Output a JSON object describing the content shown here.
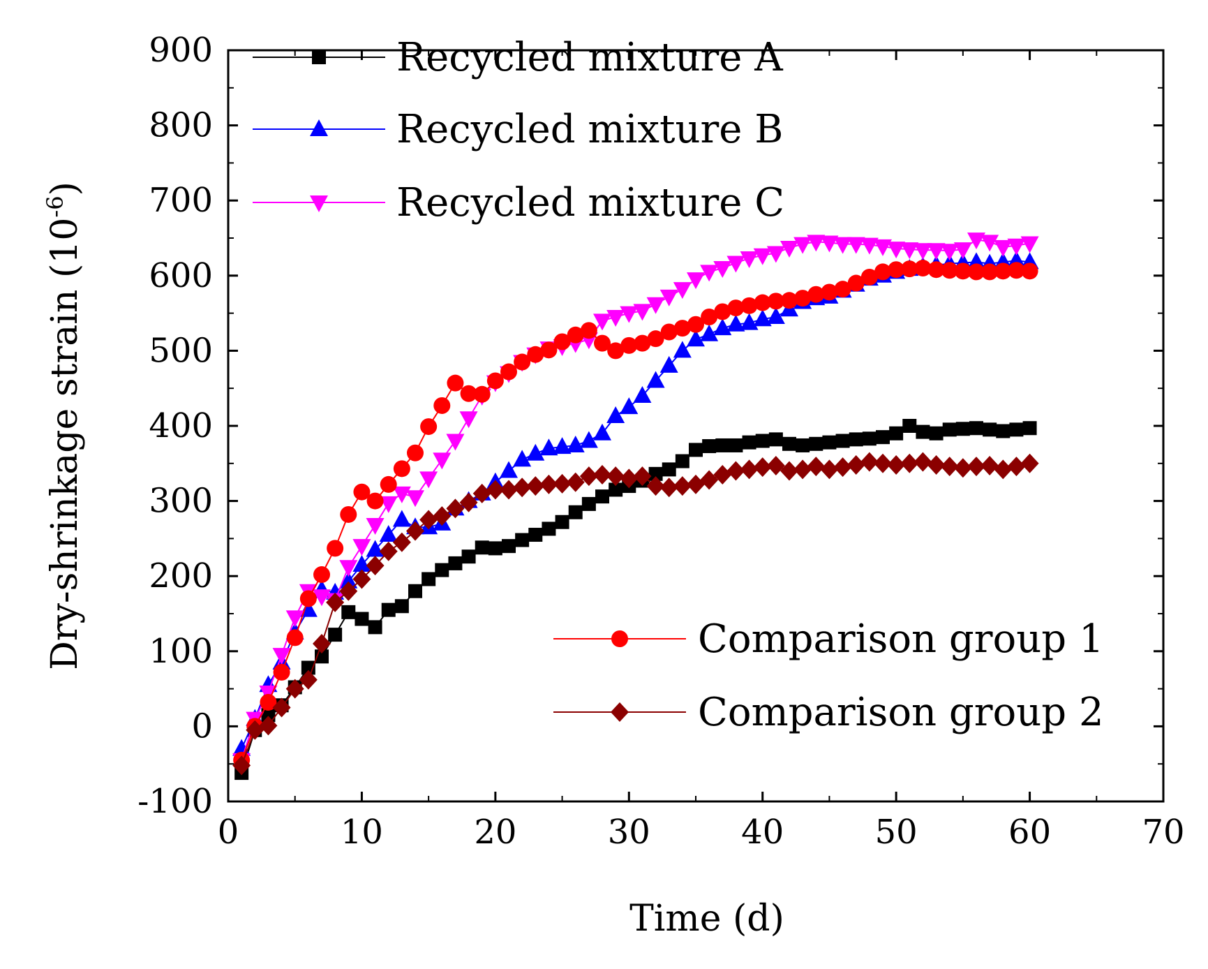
{
  "chart_data": {
    "type": "line",
    "title": "",
    "xlabel": "Time (d)",
    "ylabel_main": "Dry-shrinkage strain (10",
    "ylabel_sup": "-6",
    "ylabel_close": ")",
    "xlim": [
      0,
      70
    ],
    "ylim": [
      -100,
      900
    ],
    "xticks": [
      0,
      10,
      20,
      30,
      40,
      50,
      60,
      70
    ],
    "yticks": [
      -100,
      0,
      100,
      200,
      300,
      400,
      500,
      600,
      700,
      800,
      900
    ],
    "xtick_labels": [
      "0",
      "10",
      "20",
      "30",
      "40",
      "50",
      "60",
      "70"
    ],
    "ytick_labels": [
      "-100",
      "0",
      "100",
      "200",
      "300",
      "400",
      "500",
      "600",
      "700",
      "800",
      "900"
    ],
    "legend_top_position": "top-left",
    "legend_bottom_position": "bottom-right",
    "x": [
      1,
      2,
      3,
      4,
      5,
      6,
      7,
      8,
      9,
      10,
      11,
      12,
      13,
      14,
      15,
      16,
      17,
      18,
      19,
      20,
      21,
      22,
      23,
      24,
      25,
      26,
      27,
      28,
      29,
      30,
      31,
      32,
      33,
      34,
      35,
      36,
      37,
      38,
      39,
      40,
      41,
      42,
      43,
      44,
      45,
      46,
      47,
      48,
      49,
      50,
      51,
      52,
      53,
      54,
      55,
      56,
      57,
      58,
      59,
      60
    ],
    "series": [
      {
        "name": "Recycled mixture A",
        "color": "#000000",
        "marker": "square",
        "values": [
          -62,
          -5,
          15,
          28,
          52,
          78,
          93,
          122,
          152,
          143,
          132,
          155,
          160,
          180,
          196,
          208,
          217,
          226,
          238,
          237,
          240,
          248,
          255,
          263,
          272,
          285,
          296,
          306,
          315,
          320,
          327,
          336,
          342,
          353,
          368,
          373,
          374,
          374,
          378,
          380,
          382,
          376,
          374,
          376,
          378,
          380,
          382,
          383,
          385,
          390,
          400,
          392,
          390,
          395,
          396,
          397,
          395,
          393,
          395,
          397
        ]
      },
      {
        "name": "Recycled mixture B",
        "color": "#0000ff",
        "marker": "triangle-up",
        "values": [
          -30,
          10,
          55,
          85,
          125,
          155,
          182,
          178,
          193,
          215,
          235,
          255,
          275,
          265,
          265,
          270,
          290,
          300,
          310,
          325,
          340,
          355,
          363,
          370,
          372,
          374,
          380,
          390,
          413,
          425,
          440,
          460,
          480,
          500,
          515,
          522,
          530,
          535,
          537,
          542,
          545,
          555,
          565,
          570,
          572,
          580,
          588,
          596,
          600,
          605,
          609,
          612,
          614,
          616,
          617,
          618,
          616,
          618,
          620,
          618
        ]
      },
      {
        "name": "Recycled mixture C",
        "color": "#ff00ff",
        "marker": "triangle-down",
        "values": [
          -45,
          10,
          45,
          95,
          145,
          180,
          173,
          168,
          212,
          240,
          268,
          297,
          310,
          305,
          330,
          355,
          380,
          410,
          440,
          458,
          470,
          485,
          495,
          503,
          506,
          510,
          515,
          540,
          545,
          550,
          553,
          562,
          572,
          582,
          595,
          605,
          610,
          617,
          623,
          627,
          630,
          637,
          642,
          645,
          644,
          642,
          642,
          641,
          639,
          636,
          635,
          634,
          634,
          633,
          635,
          648,
          645,
          638,
          640,
          643
        ]
      },
      {
        "name": "Comparison group 1",
        "color": "#ff0000",
        "marker": "circle",
        "values": [
          -45,
          0,
          32,
          72,
          118,
          170,
          202,
          237,
          282,
          312,
          300,
          322,
          343,
          364,
          399,
          427,
          457,
          443,
          442,
          460,
          472,
          485,
          495,
          501,
          512,
          521,
          527,
          510,
          500,
          507,
          510,
          516,
          525,
          530,
          535,
          545,
          552,
          557,
          560,
          564,
          566,
          567,
          570,
          575,
          578,
          582,
          590,
          598,
          605,
          608,
          609,
          610,
          608,
          607,
          606,
          605,
          605,
          606,
          607,
          606
        ]
      },
      {
        "name": "Comparison group 2",
        "color": "#8b0000",
        "marker": "diamond",
        "values": [
          -52,
          -5,
          1,
          25,
          50,
          62,
          110,
          165,
          180,
          196,
          214,
          233,
          245,
          260,
          275,
          280,
          290,
          298,
          310,
          315,
          315,
          318,
          320,
          322,
          323,
          325,
          333,
          335,
          333,
          330,
          333,
          320,
          318,
          320,
          322,
          328,
          335,
          340,
          342,
          345,
          347,
          340,
          342,
          346,
          342,
          345,
          348,
          352,
          350,
          348,
          350,
          352,
          348,
          346,
          344,
          346,
          347,
          342,
          346,
          350
        ]
      }
    ]
  }
}
